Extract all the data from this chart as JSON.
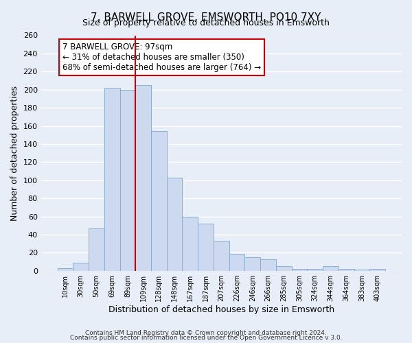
{
  "title": "7, BARWELL GROVE, EMSWORTH, PO10 7XY",
  "subtitle": "Size of property relative to detached houses in Emsworth",
  "xlabel": "Distribution of detached houses by size in Emsworth",
  "ylabel": "Number of detached properties",
  "bar_color": "#ccd9ee",
  "bar_edge_color": "#8aadd4",
  "vline_color": "#cc0000",
  "categories": [
    "10sqm",
    "30sqm",
    "50sqm",
    "69sqm",
    "89sqm",
    "109sqm",
    "128sqm",
    "148sqm",
    "167sqm",
    "187sqm",
    "207sqm",
    "226sqm",
    "246sqm",
    "266sqm",
    "285sqm",
    "305sqm",
    "324sqm",
    "344sqm",
    "364sqm",
    "383sqm",
    "403sqm"
  ],
  "values": [
    3,
    9,
    47,
    202,
    200,
    205,
    154,
    103,
    60,
    52,
    33,
    19,
    15,
    13,
    5,
    2,
    2,
    5,
    2,
    1,
    2
  ],
  "vline_index": 4.5,
  "ylim": [
    0,
    260
  ],
  "yticks": [
    0,
    20,
    40,
    60,
    80,
    100,
    120,
    140,
    160,
    180,
    200,
    220,
    240,
    260
  ],
  "annotation_line1": "7 BARWELL GROVE: 97sqm",
  "annotation_line2": "← 31% of detached houses are smaller (350)",
  "annotation_line3": "68% of semi-detached houses are larger (764) →",
  "annotation_box_color": "#ffffff",
  "annotation_box_edge": "#cc0000",
  "footer1": "Contains HM Land Registry data © Crown copyright and database right 2024.",
  "footer2": "Contains public sector information licensed under the Open Government Licence v 3.0.",
  "background_color": "#e8eef8",
  "grid_color": "#ffffff",
  "title_fontsize": 11,
  "subtitle_fontsize": 9
}
